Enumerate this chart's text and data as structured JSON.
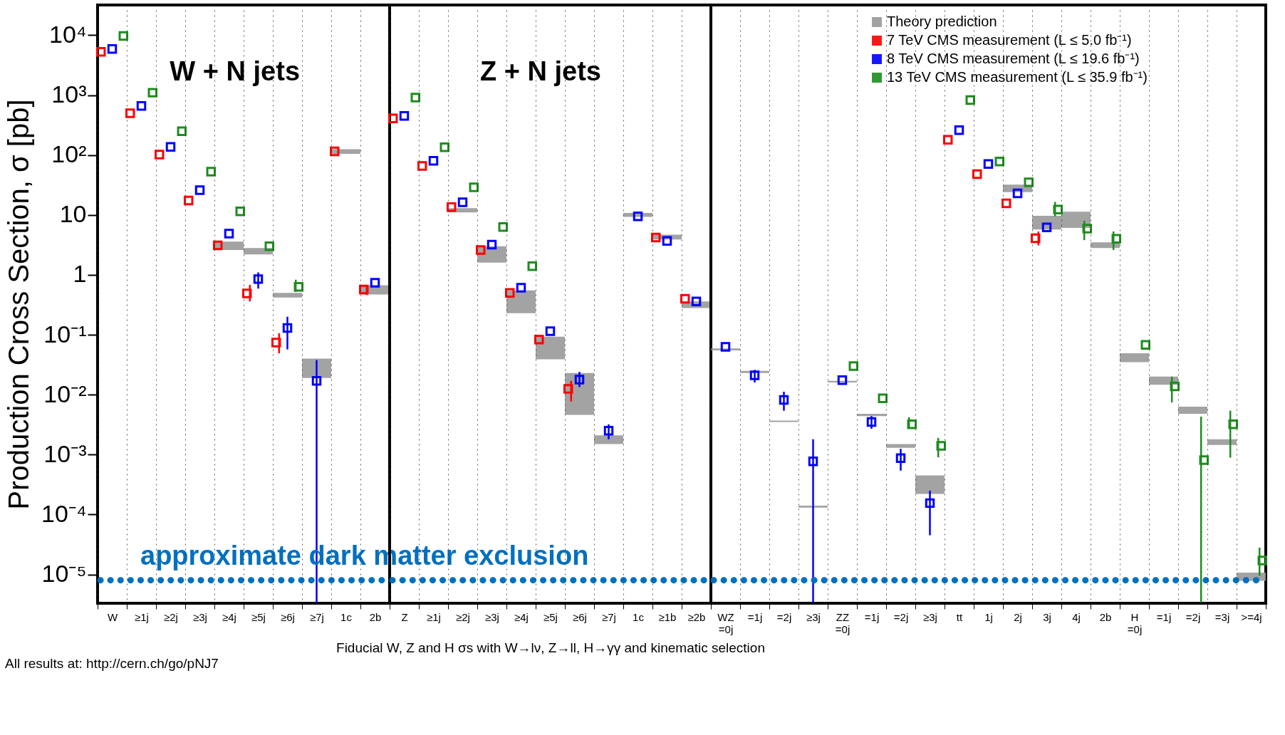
{
  "chart_data": [
    {
      "type": "scatter",
      "ylabel": "Production Cross Section,  σ [pb]",
      "log": true,
      "grid": "x",
      "marker": "square",
      "legend": "top right",
      "ylim": [
        3.3e-06,
        32000
      ],
      "yticks": [
        {
          "value": 1e-05,
          "label": "10⁻⁵"
        },
        {
          "value": 0.0001,
          "label": "10⁻⁴"
        },
        {
          "value": 0.001,
          "label": "10⁻³"
        },
        {
          "value": 0.01,
          "label": "10⁻²"
        },
        {
          "value": 0.1,
          "label": "10⁻¹"
        },
        1,
        10,
        {
          "value": 100,
          "label": "10²"
        },
        {
          "value": 1000,
          "label": "10³"
        },
        {
          "value": 10000,
          "label": "10⁴"
        }
      ],
      "categories": [
        "W",
        "≥1j",
        "≥2j",
        "≥3j",
        "≥4j",
        "≥5j",
        "≥6j",
        "≥7j",
        "1c",
        "2b"
      ],
      "annotations": [
        "W + N jets",
        "All results at: http://cern.ch/go/pNJ7"
      ],
      "ref_lines": [
        {
          "axis": "y",
          "value": 8e-06,
          "label": "approximate dark matter exclusion",
          "color": "#0070c0",
          "line_style": "dotted"
        }
      ],
      "series": [
        {
          "type": "bar",
          "name": "Theory prediction",
          "color": "#999999",
          "base": [
            null,
            null,
            null,
            null,
            2.6,
            2.2,
            0.42,
            0.019,
            105,
            0.47
          ],
          "values": [
            null,
            null,
            null,
            null,
            1.0,
            0.6,
            0.08,
            0.021,
            20,
            0.2
          ]
        },
        {
          "name": "7 TeV CMS measurement (L ≤ 5.0 fb⁻¹)",
          "color": "#ff0000",
          "values": [
            5300,
            500,
            102,
            17.5,
            3.1,
            0.49,
            0.074,
            null,
            115,
            0.57
          ],
          "errors": [
            null,
            null,
            null,
            null,
            null,
            [
              0.36,
              0.68
            ],
            [
              0.049,
              0.106
            ],
            null,
            null,
            [
              0.46,
              0.68
            ]
          ]
        },
        {
          "name": "8 TeV CMS measurement (L ≤ 19.6 fb⁻¹)",
          "color": "#0000ff",
          "values": [
            5900,
            660,
            137,
            26,
            4.9,
            0.85,
            0.13,
            0.017,
            null,
            0.74
          ],
          "errors": [
            null,
            null,
            null,
            null,
            null,
            [
              0.59,
              1.1
            ],
            [
              0.057,
              0.2
            ],
            [
              3.3e-06,
              0.038
            ],
            null,
            null
          ]
        },
        {
          "name": "13 TeV CMS measurement (L ≤ 35.9 fb⁻¹)",
          "color": "#1e8c1e",
          "values": [
            9700,
            1100,
            250,
            53,
            11.5,
            3.0,
            0.63,
            null,
            null,
            null
          ],
          "errors": [
            null,
            null,
            null,
            null,
            null,
            null,
            [
              0.52,
              0.83
            ],
            null,
            null,
            null
          ]
        }
      ]
    },
    {
      "type": "scatter",
      "xlabel": "Fiducial  W, Z and H σs with W→lν, Z→ll, H→γγ and kinematic selection",
      "log": true,
      "grid": "x",
      "marker": "square",
      "tick_labels": "x",
      "ylim": [
        3.3e-06,
        32000
      ],
      "categories": [
        "Z",
        "≥1j",
        "≥2j",
        "≥3j",
        "≥4j",
        "≥5j",
        "≥6j",
        "≥7j",
        "1c",
        "≥1b",
        "≥2b"
      ],
      "annotations": [
        "Z + N jets"
      ],
      "ref_lines": [
        {
          "axis": "y",
          "value": 8e-06,
          "color": "#0070c0",
          "line_style": "dotted"
        }
      ],
      "series": [
        {
          "type": "bar",
          "color": "#999999",
          "base": [
            null,
            null,
            11,
            1.6,
            0.23,
            0.039,
            0.0046,
            0.0015,
            9.3,
            3.9,
            0.28
          ],
          "values": [
            null,
            null,
            2,
            1.4,
            0.32,
            0.054,
            0.0184,
            0.0006,
            1.5,
            0.8,
            0.08
          ]
        },
        {
          "color": "#ff0000",
          "values": [
            410,
            66,
            13.5,
            2.6,
            0.5,
            0.083,
            0.0125,
            null,
            null,
            4.2,
            0.4
          ],
          "errors": [
            null,
            null,
            null,
            null,
            null,
            null,
            [
              0.0077,
              0.017
            ],
            null,
            null,
            null,
            null
          ]
        },
        {
          "color": "#0000ff",
          "values": [
            450,
            80,
            16.3,
            3.2,
            0.61,
            0.115,
            0.0178,
            0.0025,
            9.5,
            3.7,
            0.36
          ],
          "errors": [
            null,
            null,
            null,
            null,
            null,
            null,
            [
              0.0134,
              0.024
            ],
            [
              0.0018,
              0.0032
            ],
            null,
            null,
            null
          ]
        },
        {
          "color": "#1e8c1e",
          "values": [
            910,
            135,
            29,
            6.3,
            1.4,
            null,
            null,
            null,
            null,
            null,
            null
          ]
        }
      ]
    },
    {
      "type": "scatter",
      "log": true,
      "grid": "x",
      "marker": "square",
      "tick_labels": "x",
      "ylim": [
        3.3e-06,
        32000
      ],
      "categories": [
        "WZ =0j",
        "=1j",
        "=2j",
        "≥3j",
        "ZZ =0j",
        "=1j",
        "=2j",
        "≥3j",
        "tt",
        "1j",
        "2j",
        "3j",
        "4j",
        "2b",
        "H =0j",
        "=1j",
        "=2j",
        "=3j",
        ">=4j"
      ],
      "ref_lines": [
        {
          "axis": "y",
          "value": 8e-06,
          "color": "#0070c0",
          "line_style": "dotted"
        }
      ],
      "series": [
        {
          "type": "bar",
          "color": "#999999",
          "base": [
            0.055,
            0.023,
            0.0035,
            0.00013,
            0.016,
            0.0044,
            0.0013,
            0.00022,
            null,
            null,
            24,
            5.7,
            6.1,
            2.8,
            0.035,
            0.0146,
            0.0048,
            0.00145,
            7.8e-06
          ],
          "values": [
            0.004,
            0.002,
            0.0002,
            1e-05,
            0.001,
            0.0004,
            0.0002,
            0.00023,
            null,
            null,
            8,
            4.0,
            5.2,
            0.7,
            0.014,
            0.0054,
            0.0015,
            0.00035,
            2.9e-06
          ]
        },
        {
          "color": "#ff0000",
          "values": [
            null,
            null,
            null,
            null,
            null,
            null,
            null,
            null,
            180,
            48,
            15.6,
            4.1,
            null,
            null,
            null,
            null,
            null,
            null,
            null
          ],
          "errors": [
            null,
            null,
            null,
            null,
            null,
            null,
            null,
            null,
            null,
            null,
            null,
            [
              3.1,
              5.3
            ],
            null,
            null,
            null,
            null,
            null,
            null,
            null
          ]
        },
        {
          "color": "#0000ff",
          "values": [
            0.063,
            0.021,
            0.0082,
            0.00077,
            0.0175,
            0.0035,
            0.00087,
            0.000155,
            260,
            71,
            23,
            6.2,
            null,
            null,
            null,
            null,
            null,
            null,
            null
          ],
          "errors": [
            null,
            [
              0.016,
              0.026
            ],
            [
              0.0054,
              0.0112
            ],
            [
              3.3e-06,
              0.0018
            ],
            null,
            [
              0.0027,
              0.0044
            ],
            [
              0.00054,
              0.00125
            ],
            [
              4.5e-05,
              0.00025
            ],
            null,
            null,
            null,
            null,
            null,
            null,
            null,
            null,
            null,
            null,
            null
          ]
        },
        {
          "color": "#1e8c1e",
          "values": [
            null,
            null,
            null,
            null,
            0.03,
            0.0087,
            0.0032,
            0.0014,
            830,
            78,
            35,
            12.3,
            5.9,
            4.0,
            0.068,
            0.0138,
            0.00081,
            0.0032,
            1.7e-05
          ],
          "errors": [
            null,
            null,
            null,
            null,
            null,
            null,
            [
              0.0027,
              0.0042
            ],
            [
              0.0009,
              0.0019
            ],
            null,
            null,
            null,
            [
              9.5,
              16.5
            ],
            [
              3.8,
              8.0
            ],
            [
              2.6,
              5.3
            ],
            null,
            [
              0.0074,
              0.02
            ],
            [
              3.3e-06,
              0.0043
            ],
            [
              0.00089,
              0.0054
            ],
            [
              9.5e-06,
              2.8e-05
            ]
          ]
        }
      ]
    }
  ]
}
